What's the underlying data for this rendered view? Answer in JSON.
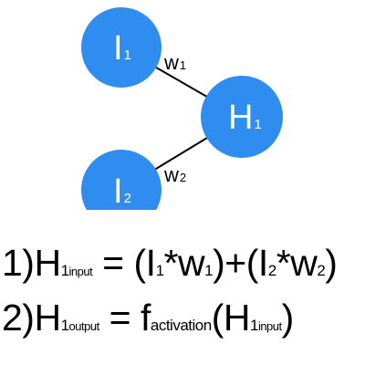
{
  "diagram": {
    "node_color": "#2e8def",
    "edge_color": "#000000",
    "nodes": [
      {
        "id": "I1",
        "letter": "I",
        "subscript": "1"
      },
      {
        "id": "H1",
        "letter": "H",
        "subscript": "1"
      },
      {
        "id": "I2",
        "letter": "I",
        "subscript": "2"
      }
    ],
    "edges": [
      {
        "from": "I1",
        "to": "H1",
        "weight_letter": "w",
        "weight_subscript": "1"
      },
      {
        "from": "I2",
        "to": "H1",
        "weight_letter": "w",
        "weight_subscript": "2"
      }
    ]
  },
  "equations": {
    "eq1": {
      "number": "1)",
      "lhs_letter": "H",
      "lhs_subscript_digit": "1",
      "lhs_subscript_word": "input",
      "equals": "=",
      "open1": "(",
      "t1_letter": "I",
      "t1_sub": "1",
      "t1_op": "*",
      "t1_w": "w",
      "t1_wsub": "1",
      "close1": ")",
      "plus": "+",
      "open2": "(",
      "t2_letter": "I",
      "t2_sub": "2",
      "t2_op": "*",
      "t2_w": "w",
      "t2_wsub": "2",
      "close2": ")"
    },
    "eq2": {
      "number": "2)",
      "lhs_letter": "H",
      "lhs_subscript_digit": "1",
      "lhs_subscript_word": "output",
      "equals": "=",
      "func_letter": "f",
      "func_subscript": "activation",
      "open": "(",
      "arg_letter": "H",
      "arg_subscript_digit": "1",
      "arg_subscript_word": "input",
      "close": ")"
    }
  }
}
